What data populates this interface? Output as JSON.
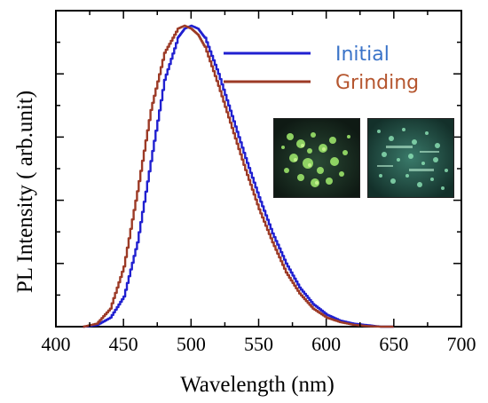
{
  "chart_data": {
    "type": "line",
    "xlabel": "Wavelength (nm)",
    "ylabel": "PL Intensity ( arb.unit)",
    "xlim": [
      400,
      700
    ],
    "ylim": [
      0,
      1.05
    ],
    "x_ticks": [
      "400",
      "450",
      "500",
      "550",
      "600",
      "650",
      "700"
    ],
    "grid": false,
    "legend_position": "top-right",
    "series": [
      {
        "name": "Initial",
        "color": "#2020d0",
        "x": [
          420,
          430,
          440,
          450,
          460,
          470,
          480,
          490,
          495,
          500,
          505,
          510,
          520,
          530,
          540,
          550,
          560,
          570,
          580,
          590,
          600,
          610,
          620,
          630,
          640,
          650
        ],
        "y": [
          0.0,
          0.005,
          0.03,
          0.1,
          0.28,
          0.55,
          0.82,
          0.96,
          0.99,
          1.0,
          0.99,
          0.96,
          0.84,
          0.7,
          0.56,
          0.43,
          0.31,
          0.21,
          0.13,
          0.075,
          0.04,
          0.02,
          0.01,
          0.005,
          0.0,
          0.0
        ]
      },
      {
        "name": "Grinding",
        "color": "#9c3a26",
        "x": [
          420,
          430,
          440,
          450,
          460,
          470,
          480,
          490,
          495,
          500,
          505,
          510,
          520,
          530,
          540,
          550,
          560,
          570,
          580,
          590,
          600,
          610,
          620,
          630,
          640,
          650
        ],
        "y": [
          0.0,
          0.01,
          0.06,
          0.2,
          0.45,
          0.72,
          0.91,
          0.99,
          1.0,
          0.99,
          0.97,
          0.93,
          0.8,
          0.66,
          0.52,
          0.39,
          0.28,
          0.18,
          0.11,
          0.06,
          0.03,
          0.015,
          0.006,
          0.002,
          0.0,
          0.0
        ]
      }
    ]
  },
  "colors": {
    "initial": "#2020d0",
    "grinding": "#9c3a26",
    "initial_label": "#3a73c8",
    "grinding_label": "#b5562f"
  }
}
